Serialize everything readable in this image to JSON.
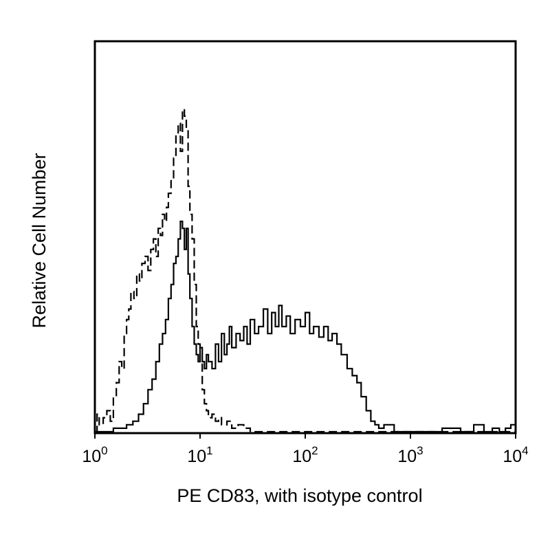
{
  "chart_data": {
    "type": "line",
    "title": "",
    "xlabel": "PE CD83, with isotype control",
    "ylabel": "Relative Cell Number",
    "x_scale": "log",
    "xlim": [
      1,
      10000
    ],
    "ylim": [
      0,
      100
    ],
    "grid": false,
    "x_ticks": [
      {
        "base": "10",
        "exp": "0"
      },
      {
        "base": "10",
        "exp": "1"
      },
      {
        "base": "10",
        "exp": "2"
      },
      {
        "base": "10",
        "exp": "3"
      },
      {
        "base": "10",
        "exp": "4"
      }
    ],
    "series": [
      {
        "style": "dashed",
        "color": "#000000",
        "x": [
          1.0,
          1.05,
          1.1,
          1.2,
          1.3,
          1.4,
          1.5,
          1.6,
          1.7,
          1.8,
          1.9,
          2.0,
          2.1,
          2.2,
          2.35,
          2.5,
          2.65,
          2.8,
          3.0,
          3.2,
          3.4,
          3.6,
          3.8,
          4.0,
          4.2,
          4.4,
          4.6,
          4.8,
          5.0,
          5.3,
          5.6,
          5.9,
          6.2,
          6.5,
          6.8,
          7.1,
          7.4,
          7.7,
          8.0,
          8.4,
          8.8,
          9.2,
          9.6,
          10.0,
          10.5,
          11.0,
          11.5,
          12.0,
          13.0,
          14.0,
          15.0,
          16.0,
          18.0,
          20.0,
          23.0,
          26.0,
          30.0,
          40.0,
          60.0,
          100.0,
          1000.0,
          10000.0
        ],
        "y": [
          0,
          5,
          2,
          4,
          6,
          3,
          10,
          14,
          20,
          18,
          28,
          32,
          35,
          40,
          38,
          45,
          43,
          48,
          50,
          46,
          52,
          55,
          50,
          58,
          56,
          62,
          60,
          64,
          68,
          72,
          78,
          85,
          88,
          80,
          92,
          90,
          86,
          70,
          62,
          55,
          42,
          30,
          25,
          20,
          12,
          8,
          6,
          4,
          5,
          3,
          4,
          2,
          3,
          1,
          2,
          1,
          0,
          0,
          0,
          0,
          0,
          0
        ]
      },
      {
        "style": "solid",
        "color": "#000000",
        "x": [
          1.0,
          1.5,
          2.0,
          2.3,
          2.6,
          2.9,
          3.2,
          3.5,
          3.8,
          4.1,
          4.4,
          4.7,
          5.0,
          5.3,
          5.6,
          5.9,
          6.2,
          6.5,
          6.8,
          7.1,
          7.4,
          7.7,
          8.0,
          8.4,
          8.8,
          9.2,
          9.6,
          10.0,
          10.5,
          11.0,
          11.5,
          12.0,
          13.0,
          14.0,
          15.0,
          16.0,
          17.0,
          18.0,
          19.0,
          20.0,
          22.0,
          24.0,
          26.0,
          28.0,
          30.0,
          33.0,
          36.0,
          40.0,
          44.0,
          48.0,
          52.0,
          56.0,
          60.0,
          66.0,
          72.0,
          80.0,
          90.0,
          100.0,
          110.0,
          120.0,
          135.0,
          150.0,
          165.0,
          180.0,
          200.0,
          220.0,
          250.0,
          280.0,
          310.0,
          340.0,
          380.0,
          420.0,
          460.0,
          500.0,
          560.0,
          700.0,
          1000.0,
          2000.0,
          3000.0,
          4000.0,
          5000.0,
          6000.0,
          7000.0,
          8000.0,
          9000.0,
          10000.0
        ],
        "y": [
          0,
          1,
          2,
          3,
          5,
          8,
          12,
          15,
          20,
          25,
          28,
          32,
          38,
          42,
          48,
          50,
          55,
          60,
          58,
          52,
          58,
          45,
          38,
          30,
          25,
          22,
          20,
          24,
          20,
          18,
          22,
          20,
          18,
          25,
          20,
          28,
          22,
          25,
          30,
          24,
          28,
          26,
          30,
          25,
          32,
          28,
          30,
          35,
          28,
          34,
          30,
          36,
          30,
          33,
          28,
          32,
          30,
          34,
          28,
          30,
          27,
          30,
          26,
          28,
          25,
          22,
          18,
          16,
          14,
          10,
          6,
          3,
          2,
          1,
          2,
          0,
          0,
          1,
          0,
          2,
          0,
          1,
          0,
          1,
          2,
          0
        ]
      }
    ]
  }
}
